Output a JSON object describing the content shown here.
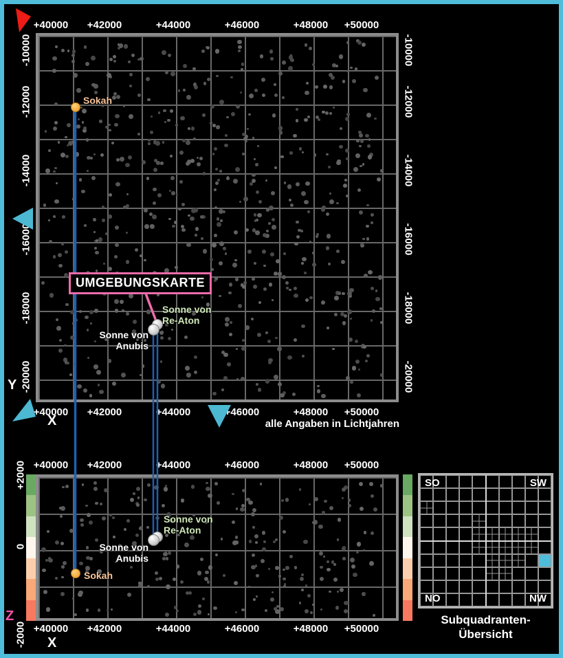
{
  "page": {
    "background": "#000000",
    "frame_color": "#4fbcd9"
  },
  "annotations": {
    "map_label": "UMGEBUNGSKARTE",
    "map_label_border_color": "#ee6bab",
    "callout_line_color": "#ee6bab",
    "units_note": "alle Angaben in Lichtjahren"
  },
  "main_map": {
    "x_axis_title": "X",
    "y_axis_title": "Y",
    "x_ticks": [
      "+40000",
      "+42000",
      "+44000",
      "+46000",
      "+48000",
      "+50000"
    ],
    "y_ticks": [
      "-10000",
      "-12000",
      "-14000",
      "-16000",
      "-18000",
      "-20000"
    ],
    "grid_step_ly": 1000,
    "x_range_ly": [
      40000,
      50560
    ],
    "y_range_ly": [
      -10000,
      -20740
    ]
  },
  "bottom_map": {
    "x_axis_title": "X",
    "z_axis_title": "Z",
    "z_axis_title_color": "#f353ad",
    "x_ticks": [
      "+40000",
      "+42000",
      "+44000",
      "+46000",
      "+48000",
      "+50000"
    ],
    "z_ticks": [
      "+2000",
      "0",
      "-2000"
    ],
    "z_range_ly": [
      2000,
      -2000
    ],
    "z_scale_colors": [
      "#6aa963",
      "#9cc383",
      "#cfe2c0",
      "#fdf6ec",
      "#fbcfae",
      "#f9a877",
      "#f7795f"
    ]
  },
  "objects": [
    {
      "id": "sokah",
      "label_lines": [
        "Sokah"
      ],
      "x_ly": 41150,
      "y_ly": -12150,
      "z_ly": -700,
      "dot_color": "#f2a93c",
      "label_color": "#f8c49a",
      "radius": 7,
      "line_width": 3.5
    },
    {
      "id": "sonne-von-re-aton",
      "label_lines": [
        "Sonne von",
        "Re-Aton"
      ],
      "x_ly": 43540,
      "y_ly": -18480,
      "z_ly": 290,
      "dot_color": "silver",
      "label_color": "#cfe7b8",
      "radius": 8,
      "line_width": 2.5
    },
    {
      "id": "sonne-von-anubis",
      "label_lines": [
        "Sonne von",
        "Anubis"
      ],
      "x_ly": 43420,
      "y_ly": -18620,
      "z_ly": 200,
      "dot_color": "silver",
      "label_color": "#ffffff",
      "radius": 8.5,
      "line_width": 2.5
    }
  ],
  "connector_line_color": "#1f5fae",
  "direction_markers": {
    "north_arrow_color": "#ed1c16",
    "cyan_arrow_color": "#4cb8d2"
  },
  "subquadrant_overview": {
    "caption_lines": [
      "Subquadranten-",
      "Übersicht"
    ],
    "corner_labels": {
      "top_left": "SO",
      "top_right": "SW",
      "bottom_left": "NO",
      "bottom_right": "NW"
    },
    "grid_size": 10,
    "highlight_cell": {
      "col": 9,
      "row": 6
    },
    "highlight_color": "#4fbcd9",
    "subdivided_cells": [
      [
        0,
        2
      ],
      [
        4,
        3
      ],
      [
        4,
        4
      ],
      [
        5,
        4
      ],
      [
        6,
        4
      ],
      [
        7,
        4
      ],
      [
        8,
        4
      ],
      [
        4,
        5
      ],
      [
        5,
        5
      ],
      [
        6,
        5
      ],
      [
        7,
        5
      ],
      [
        8,
        5
      ],
      [
        5,
        6
      ],
      [
        6,
        6
      ],
      [
        7,
        6
      ],
      [
        5,
        7
      ],
      [
        6,
        7
      ]
    ]
  },
  "decor": {
    "star_seed": 20240917,
    "main_star_count": 640,
    "bottom_star_count": 250,
    "star_gray_min": 68,
    "star_gray_max": 106
  }
}
